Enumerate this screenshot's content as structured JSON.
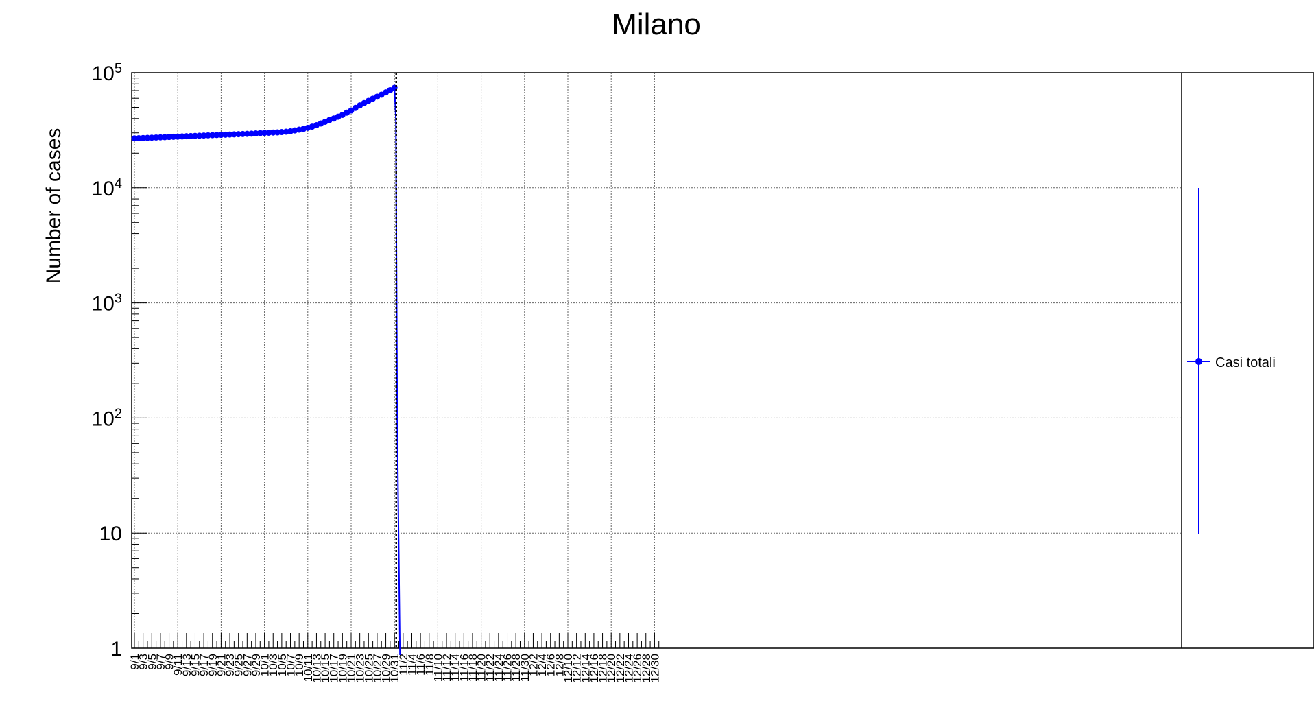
{
  "chart_data": {
    "type": "line",
    "title": "Milano",
    "ylabel": "Number of cases",
    "xlabel": "",
    "x_axis": {
      "start_date": "2020-09-01",
      "end_date": "2020-12-31",
      "tick_labels": [
        "9/1",
        "9/3",
        "9/5",
        "9/7",
        "9/9",
        "9/11",
        "9/13",
        "9/15",
        "9/17",
        "9/19",
        "9/21",
        "9/23",
        "9/25",
        "9/27",
        "9/29",
        "10/1",
        "10/3",
        "10/5",
        "10/7",
        "10/9",
        "10/11",
        "10/13",
        "10/15",
        "10/17",
        "10/19",
        "10/21",
        "10/23",
        "10/25",
        "10/27",
        "10/29",
        "10/31",
        "11/2",
        "11/4",
        "11/6",
        "11/8",
        "11/10",
        "11/12",
        "11/14",
        "11/16",
        "11/18",
        "11/20",
        "11/22",
        "11/24",
        "11/26",
        "11/28",
        "11/30",
        "12/2",
        "12/4",
        "12/6",
        "12/8",
        "12/10",
        "12/12",
        "12/14",
        "12/16",
        "12/18",
        "12/20",
        "12/22",
        "12/24",
        "12/26",
        "12/28",
        "12/30"
      ]
    },
    "y_axis": {
      "scale": "log",
      "ylim": [
        1,
        100000
      ],
      "tick_labels": [
        {
          "value": 1,
          "base": "1",
          "exp": ""
        },
        {
          "value": 10,
          "base": "10",
          "exp": ""
        },
        {
          "value": 100,
          "base": "10",
          "exp": "2"
        },
        {
          "value": 1000,
          "base": "10",
          "exp": "3"
        },
        {
          "value": 10000,
          "base": "10",
          "exp": "4"
        },
        {
          "value": 100000,
          "base": "10",
          "exp": "5"
        }
      ]
    },
    "grid": true,
    "legend": {
      "position": "right",
      "entries": [
        {
          "label": "Casi totali",
          "color": "#0000ff"
        }
      ]
    },
    "vertical_marker": {
      "date": "2020-11-01",
      "style": "dotted",
      "color": "#000000"
    },
    "series": [
      {
        "name": "Casi totali",
        "color": "#0000ff",
        "dates": [
          "2020-09-01",
          "2020-09-02",
          "2020-09-03",
          "2020-09-04",
          "2020-09-05",
          "2020-09-06",
          "2020-09-07",
          "2020-09-08",
          "2020-09-09",
          "2020-09-10",
          "2020-09-11",
          "2020-09-12",
          "2020-09-13",
          "2020-09-14",
          "2020-09-15",
          "2020-09-16",
          "2020-09-17",
          "2020-09-18",
          "2020-09-19",
          "2020-09-20",
          "2020-09-21",
          "2020-09-22",
          "2020-09-23",
          "2020-09-24",
          "2020-09-25",
          "2020-09-26",
          "2020-09-27",
          "2020-09-28",
          "2020-09-29",
          "2020-09-30",
          "2020-10-01",
          "2020-10-02",
          "2020-10-03",
          "2020-10-04",
          "2020-10-05",
          "2020-10-06",
          "2020-10-07",
          "2020-10-08",
          "2020-10-09",
          "2020-10-10",
          "2020-10-11",
          "2020-10-12",
          "2020-10-13",
          "2020-10-14",
          "2020-10-15",
          "2020-10-16",
          "2020-10-17",
          "2020-10-18",
          "2020-10-19",
          "2020-10-20",
          "2020-10-21",
          "2020-10-22",
          "2020-10-23",
          "2020-10-24",
          "2020-10-25",
          "2020-10-26",
          "2020-10-27",
          "2020-10-28",
          "2020-10-29",
          "2020-10-30",
          "2020-10-31"
        ],
        "values": [
          26900,
          26950,
          27050,
          27150,
          27250,
          27350,
          27450,
          27550,
          27650,
          27750,
          27850,
          27950,
          28050,
          28150,
          28250,
          28350,
          28450,
          28550,
          28650,
          28750,
          28850,
          28950,
          29050,
          29150,
          29250,
          29350,
          29450,
          29550,
          29700,
          29850,
          30000,
          30100,
          30200,
          30300,
          30500,
          30700,
          31000,
          31500,
          32000,
          32500,
          33200,
          34000,
          35000,
          36200,
          37500,
          38800,
          40000,
          41500,
          43000,
          45000,
          47000,
          49500,
          52000,
          54500,
          57000,
          59500,
          62000,
          64500,
          67500,
          70500,
          74000
        ],
        "drop_to": 1
      }
    ]
  }
}
